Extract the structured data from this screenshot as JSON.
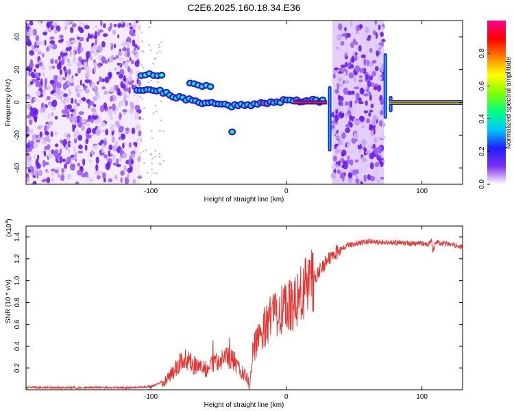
{
  "title": "C2E6.2025.160.18.34.E36",
  "colors": {
    "accent": "#e8322e",
    "noise": "#7a2cf0",
    "background": "#ffffff"
  },
  "chart_data": [
    {
      "type": "heatmap",
      "title": "C2E6.2025.160.18.34.E36",
      "xlabel": "Height of straight line (km)",
      "ylabel": "Frequency (Hz)",
      "xlim": [
        -192,
        130
      ],
      "ylim": [
        -50,
        50
      ],
      "x_ticks": [
        -100,
        0,
        100
      ],
      "y_ticks": [
        -40,
        -20,
        0,
        20,
        40
      ],
      "x_tick_labels": [
        "-100",
        "0",
        "100"
      ],
      "y_tick_labels": [
        "-40",
        "-20",
        "0",
        "20",
        "40"
      ],
      "colorbar": {
        "label": "Normalized spectral amplitude",
        "range": [
          0,
          1
        ],
        "ticks": [
          0.0,
          0.2,
          0.4,
          0.6,
          0.8
        ],
        "tick_labels": [
          "0.0",
          "0.2",
          "0.4",
          "0.6",
          "0.8"
        ],
        "colormap": [
          "#ffffff",
          "#7b2ff0",
          "#2020ff",
          "#00c8ff",
          "#00ff80",
          "#80ff00",
          "#ffff00",
          "#ff8000",
          "#ff0000",
          "#ff0090"
        ]
      },
      "noise_regions": [
        [
          -192,
          -108
        ],
        [
          34,
          72
        ]
      ],
      "ridge": {
        "x": [
          -110,
          -100,
          -90,
          -80,
          -70,
          -60,
          -50,
          -40,
          -30,
          -20,
          -10,
          0,
          10,
          20,
          29
        ],
        "frequency": [
          8,
          8,
          6,
          3,
          1,
          0,
          -1,
          -2,
          -1,
          -1,
          0,
          1,
          1,
          1,
          1
        ]
      },
      "ridge_secondary": {
        "x": [
          -107,
          -100,
          -95,
          -70,
          -60,
          -55
        ],
        "frequency": [
          17,
          17,
          17,
          12,
          10,
          9
        ]
      },
      "steady_tone": {
        "x": [
          76,
          130
        ],
        "frequency": 0
      }
    },
    {
      "type": "line",
      "xlabel": "Height of straight line (km)",
      "ylabel": "SNR (10 * v/v)",
      "y_multiplier": "(x10",
      "y_multiplier_exponent": "4",
      "y_multiplier_close": ")",
      "xlim": [
        -192,
        130
      ],
      "ylim": [
        0,
        1.5
      ],
      "x_ticks": [
        -100,
        0,
        100
      ],
      "y_ticks": [
        0.2,
        0.4,
        0.6,
        0.8,
        1.0,
        1.2,
        1.4
      ],
      "x_tick_labels": [
        "-100",
        "0",
        "100"
      ],
      "y_tick_labels": [
        "0.2",
        "0.4",
        "0.6",
        "0.8",
        "1.0",
        "1.2",
        "1.4"
      ],
      "series": [
        {
          "color": "#e8322e",
          "x": [
            -192,
            -170,
            -150,
            -130,
            -110,
            -100,
            -95,
            -90,
            -85,
            -80,
            -75,
            -70,
            -65,
            -60,
            -55,
            -50,
            -45,
            -40,
            -35,
            -30,
            -27,
            -25,
            -20,
            -15,
            -10,
            -5,
            0,
            5,
            10,
            15,
            20,
            25,
            30,
            35,
            40,
            45,
            50,
            55,
            60,
            70,
            80,
            90,
            100,
            105,
            107,
            108,
            110,
            120,
            130
          ],
          "y": [
            0.02,
            0.02,
            0.02,
            0.02,
            0.02,
            0.03,
            0.05,
            0.09,
            0.14,
            0.22,
            0.3,
            0.25,
            0.2,
            0.18,
            0.22,
            0.28,
            0.3,
            0.28,
            0.2,
            0.12,
            0.05,
            0.35,
            0.48,
            0.6,
            0.7,
            0.72,
            0.75,
            0.78,
            0.85,
            0.95,
            1.02,
            1.1,
            1.18,
            1.25,
            1.28,
            1.32,
            1.34,
            1.35,
            1.36,
            1.35,
            1.35,
            1.34,
            1.34,
            1.33,
            1.38,
            1.26,
            1.35,
            1.33,
            1.31
          ]
        }
      ]
    }
  ]
}
